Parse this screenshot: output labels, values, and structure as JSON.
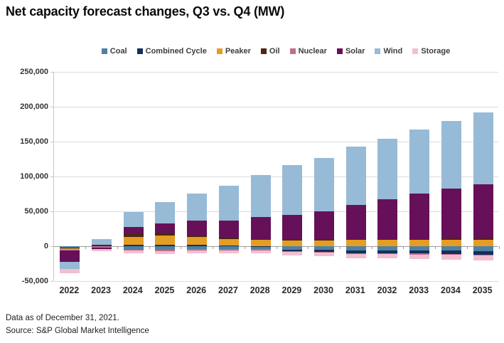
{
  "title": "Net capacity forecast changes, Q3 vs. Q4 (MW)",
  "footer": {
    "line1": "Data as of December 31, 2021.",
    "line2": "Source: S&P Global Market Intelligence"
  },
  "colors": {
    "coal": "#4E81A4",
    "combined_cycle": "#14305A",
    "peaker": "#E59D24",
    "oil": "#4C2712",
    "nuclear": "#C06E8E",
    "solar": "#66105A",
    "wind": "#97BAD6",
    "storage": "#F2BFD0",
    "gridline": "#DCDCDC",
    "zero_line": "#9B9B9B",
    "axis_line": "#C6C6C6"
  },
  "chart_data": {
    "type": "bar",
    "stacked": true,
    "title": "Net capacity forecast changes, Q3 vs. Q4 (MW)",
    "xlabel": "",
    "ylabel": "MW",
    "ylim": [
      -50000,
      250000
    ],
    "ytick_step": 50000,
    "yticks": [
      250000,
      200000,
      150000,
      100000,
      50000,
      0,
      -50000
    ],
    "ytick_labels": [
      "250,000",
      "200,000",
      "150,000",
      "100,000",
      "50,000",
      "0",
      "-50,000"
    ],
    "grid": true,
    "legend_position": "top",
    "categories": [
      "2022",
      "2023",
      "2024",
      "2025",
      "2026",
      "2027",
      "2028",
      "2029",
      "2030",
      "2031",
      "2032",
      "2033",
      "2034",
      "2035"
    ],
    "series": [
      {
        "name": "Coal",
        "color": "#4E81A4",
        "values": [
          -2000,
          0,
          -5000,
          -5500,
          -4500,
          -4500,
          -4500,
          -5000,
          -5500,
          -6500,
          -6500,
          -6500,
          -6500,
          -7000
        ]
      },
      {
        "name": "Combined Cycle",
        "color": "#14305A",
        "values": [
          -1500,
          700,
          2500,
          2500,
          1800,
          1500,
          500,
          -2000,
          -2500,
          -3500,
          -3500,
          -4000,
          -4500,
          -5000
        ]
      },
      {
        "name": "Peaker",
        "color": "#E59D24",
        "values": [
          -1500,
          1300,
          11000,
          13000,
          11700,
          9000,
          8500,
          8500,
          8500,
          9000,
          9000,
          9000,
          9500,
          9500
        ]
      },
      {
        "name": "Oil",
        "color": "#4C2712",
        "values": [
          -500,
          300,
          4000,
          4000,
          2000,
          2000,
          1500,
          1500,
          1500,
          1500,
          1500,
          1500,
          1500,
          1500
        ]
      },
      {
        "name": "Nuclear",
        "color": "#C06E8E",
        "values": [
          -500,
          -2200,
          -1200,
          -1200,
          -1500,
          -1500,
          -1500,
          -1500,
          -1500,
          -1500,
          -1500,
          -1500,
          -1500,
          -1500
        ]
      },
      {
        "name": "Solar",
        "color": "#66105A",
        "values": [
          -16500,
          -2300,
          10500,
          13000,
          21500,
          24500,
          31000,
          35000,
          40000,
          49000,
          57000,
          65000,
          72000,
          78000
        ]
      },
      {
        "name": "Wind",
        "color": "#97BAD6",
        "values": [
          -10000,
          7700,
          21000,
          31000,
          39000,
          50000,
          61000,
          71500,
          77000,
          83500,
          87000,
          92000,
          97000,
          103000
        ]
      },
      {
        "name": "Storage",
        "color": "#F2BFD0",
        "values": [
          -6000,
          -3000,
          -4300,
          -4300,
          -4500,
          -4500,
          -4000,
          -4500,
          -5000,
          -5500,
          -5500,
          -6000,
          -6500,
          -6500
        ]
      }
    ]
  }
}
